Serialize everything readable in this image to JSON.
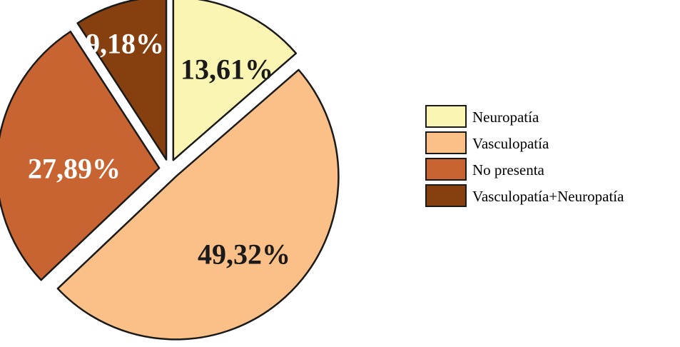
{
  "chart_data": {
    "type": "pie",
    "title": "",
    "legend_position": "right",
    "series": [
      {
        "name": "Neuropatía",
        "value": 13.61,
        "label": "13,61%",
        "color": "#FBF5B4",
        "label_color": "#1a1a1a"
      },
      {
        "name": "Vasculopatía",
        "value": 49.32,
        "label": "49,32%",
        "color": "#FBC087",
        "label_color": "#1a1a1a"
      },
      {
        "name": "No presenta",
        "value": 27.89,
        "label": "27,89%",
        "color": "#C76431",
        "label_color": "#ffffff"
      },
      {
        "name": "Vasculopatía+Neuropatía",
        "value": 9.18,
        "label": "9,18%",
        "color": "#86400F",
        "label_color": "#ffffff"
      }
    ]
  }
}
